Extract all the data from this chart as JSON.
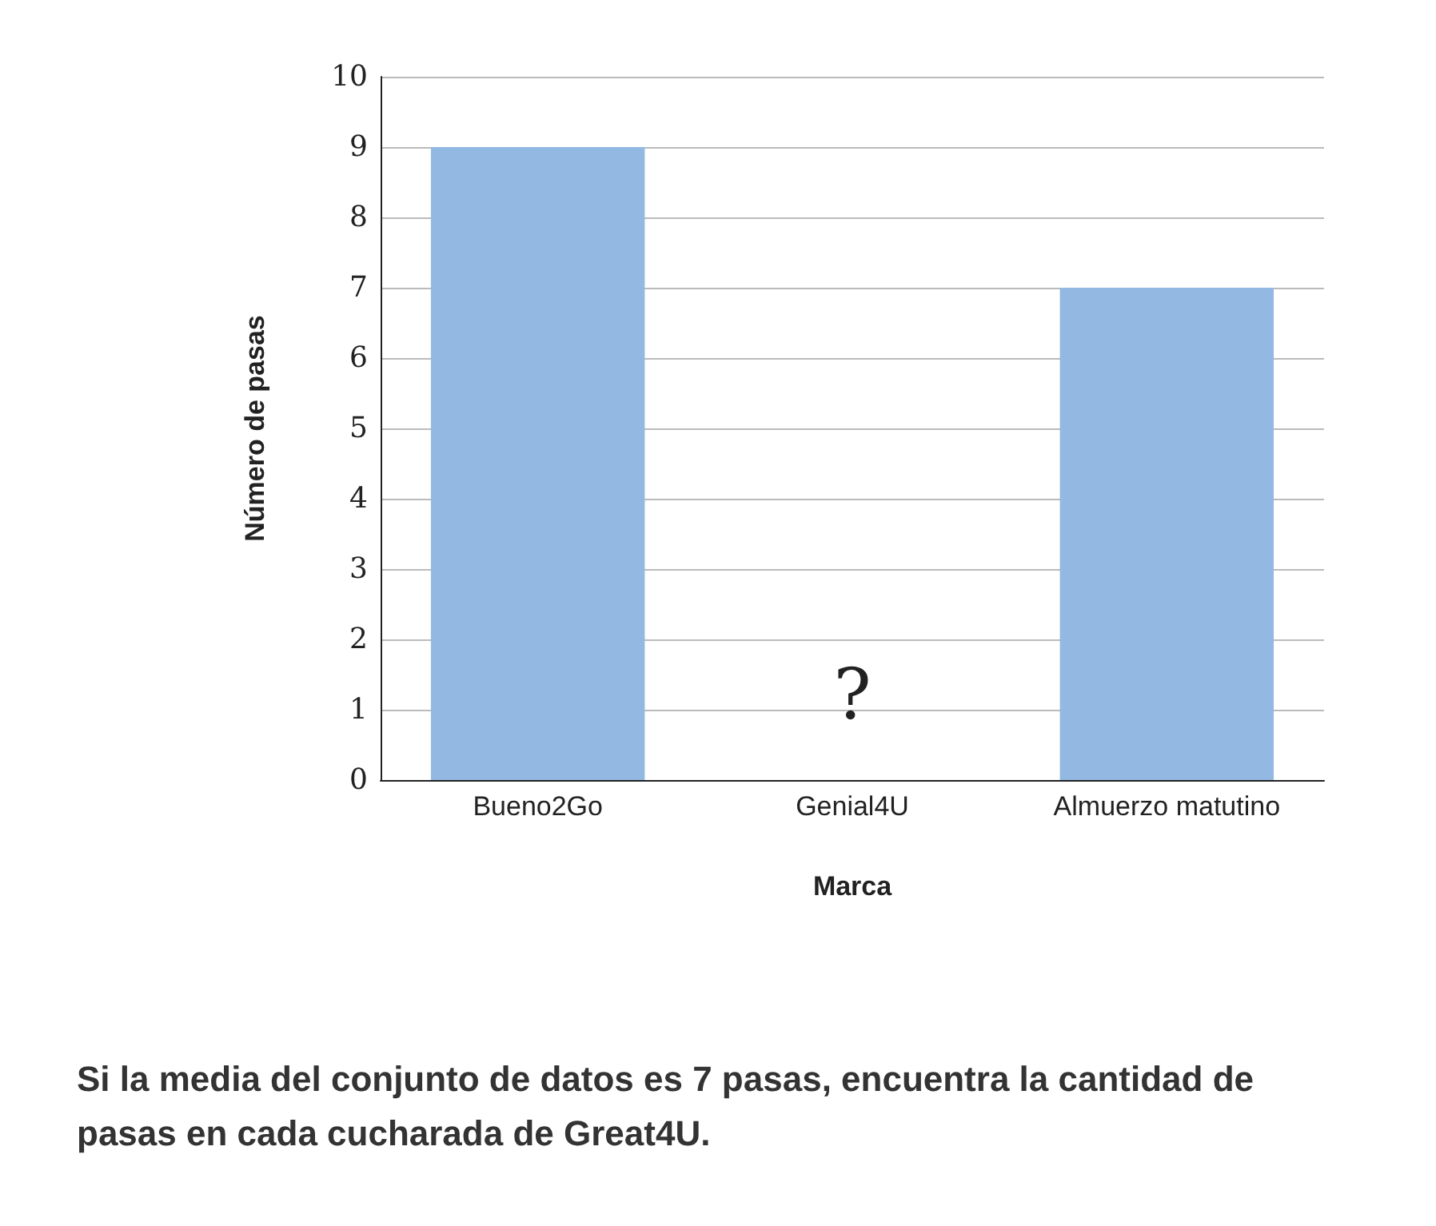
{
  "chart_data": {
    "type": "bar",
    "xlabel": "Marca",
    "ylabel": "Número de pasas",
    "categories": [
      "Bueno2Go",
      "Genial4U",
      "Almuerzo matutino"
    ],
    "values": [
      9,
      null,
      7
    ],
    "color": "#93b9e2",
    "ylim": [
      0,
      10
    ],
    "yticks": [
      0,
      1,
      2,
      3,
      4,
      5,
      6,
      7,
      8,
      9,
      10
    ],
    "grid": "y",
    "annotations": [
      "?",
      "Si la media del conjunto de datos es 7 pasas, encuentra la cantidad de pasas en cada cucharada de Great4U."
    ]
  }
}
